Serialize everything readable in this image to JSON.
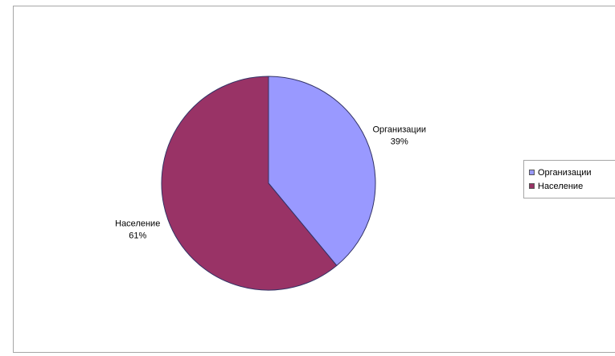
{
  "chart_data": {
    "type": "pie",
    "categories": [
      "Организации",
      "Население"
    ],
    "values": [
      39,
      61
    ],
    "value_labels": [
      "39%",
      "61%"
    ],
    "colors": [
      "#9999ff",
      "#993366"
    ],
    "legend_placement": "right",
    "start_angle": "12 o'clock, clockwise"
  }
}
